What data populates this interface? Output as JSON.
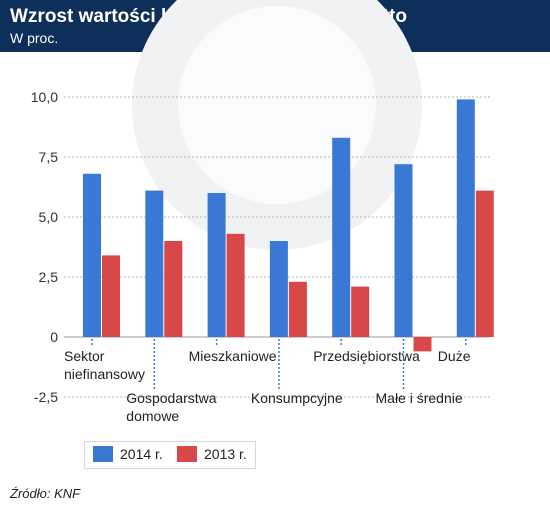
{
  "header": {
    "title": "Wzrost wartości bilansowej kredytów brutto",
    "subtitle": "W proc."
  },
  "source": "Źródło: KNF",
  "colors": {
    "header_bg": "#0e2f59",
    "series_2014": "#3a78d6",
    "series_2013": "#d94848"
  },
  "chart_data": {
    "type": "bar",
    "categories": [
      [
        "Sektor",
        "niefinansowy"
      ],
      [
        "Gospodarstwa",
        "domowe"
      ],
      [
        "Mieszkaniowe"
      ],
      [
        "Konsumpcyjne"
      ],
      [
        "Przedsiębiorstwa"
      ],
      [
        "Małe i średnie"
      ],
      [
        "Duże"
      ]
    ],
    "series": [
      {
        "name": "2014 r.",
        "color": "#3a78d6",
        "values": [
          6.8,
          6.1,
          6.0,
          4.0,
          8.3,
          7.2,
          9.9
        ]
      },
      {
        "name": "2013 r.",
        "color": "#d94848",
        "values": [
          3.4,
          4.0,
          4.3,
          2.3,
          2.1,
          -0.6,
          6.1
        ]
      }
    ],
    "yticks": [
      "10,0",
      "7,5",
      "5,0",
      "2,5",
      "0",
      "-2,5"
    ],
    "ylim": [
      -2.5,
      10
    ],
    "grid": true,
    "legend_position": "bottom-left"
  }
}
